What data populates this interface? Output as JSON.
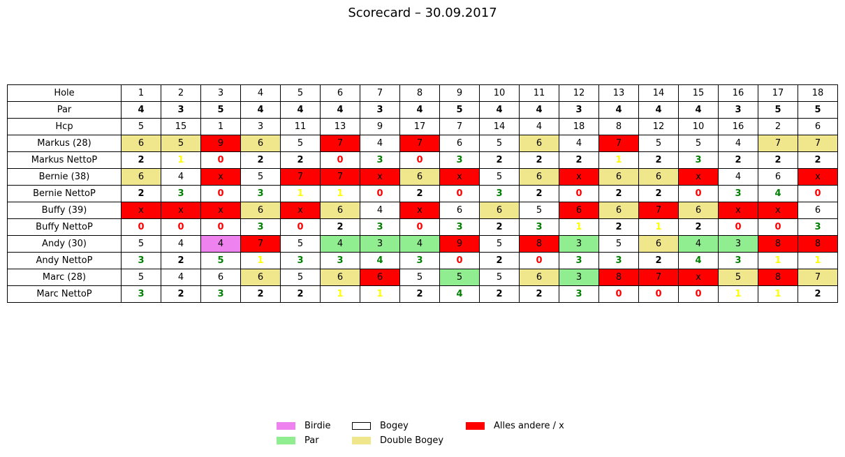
{
  "chart_data": {
    "type": "table",
    "title": "Scorecard – 30.09.2017",
    "colors": {
      "birdie": "#ee82ee",
      "par": "#90ee90",
      "bogey": "#ffffff",
      "double_bogey": "#f0e68c",
      "other": "#ff0000",
      "netto_green": "#008000",
      "netto_yellow": "#ffff00",
      "netto_red": "#ff0000",
      "netto_black": "#000000"
    },
    "legend": [
      {
        "label": "Birdie",
        "color": "#ee82ee"
      },
      {
        "label": "Par",
        "color": "#90ee90"
      },
      {
        "label": "Bogey",
        "color": "#ffffff"
      },
      {
        "label": "Double Bogey",
        "color": "#f0e68c"
      },
      {
        "label": "Alles andere / x",
        "color": "#ff0000"
      }
    ],
    "rows": [
      {
        "label": "Hole",
        "bold": false,
        "values": [
          "1",
          "2",
          "3",
          "4",
          "5",
          "6",
          "7",
          "8",
          "9",
          "10",
          "11",
          "12",
          "13",
          "14",
          "15",
          "16",
          "17",
          "18"
        ],
        "fills": [
          "none",
          "none",
          "none",
          "none",
          "none",
          "none",
          "none",
          "none",
          "none",
          "none",
          "none",
          "none",
          "none",
          "none",
          "none",
          "none",
          "none",
          "none"
        ],
        "text_colors": [
          "black",
          "black",
          "black",
          "black",
          "black",
          "black",
          "black",
          "black",
          "black",
          "black",
          "black",
          "black",
          "black",
          "black",
          "black",
          "black",
          "black",
          "black"
        ]
      },
      {
        "label": "Par",
        "bold": true,
        "values": [
          "4",
          "3",
          "5",
          "4",
          "4",
          "4",
          "3",
          "4",
          "5",
          "4",
          "4",
          "3",
          "4",
          "4",
          "4",
          "3",
          "5",
          "5"
        ],
        "fills": [
          "none",
          "none",
          "none",
          "none",
          "none",
          "none",
          "none",
          "none",
          "none",
          "none",
          "none",
          "none",
          "none",
          "none",
          "none",
          "none",
          "none",
          "none"
        ],
        "text_colors": [
          "black",
          "black",
          "black",
          "black",
          "black",
          "black",
          "black",
          "black",
          "black",
          "black",
          "black",
          "black",
          "black",
          "black",
          "black",
          "black",
          "black",
          "black"
        ]
      },
      {
        "label": "Hcp",
        "bold": false,
        "values": [
          "5",
          "15",
          "1",
          "3",
          "11",
          "13",
          "9",
          "17",
          "7",
          "14",
          "4",
          "18",
          "8",
          "12",
          "10",
          "16",
          "2",
          "6"
        ],
        "fills": [
          "none",
          "none",
          "none",
          "none",
          "none",
          "none",
          "none",
          "none",
          "none",
          "none",
          "none",
          "none",
          "none",
          "none",
          "none",
          "none",
          "none",
          "none"
        ],
        "text_colors": [
          "black",
          "black",
          "black",
          "black",
          "black",
          "black",
          "black",
          "black",
          "black",
          "black",
          "black",
          "black",
          "black",
          "black",
          "black",
          "black",
          "black",
          "black"
        ]
      },
      {
        "label": "Markus (28)",
        "bold": false,
        "values": [
          "6",
          "5",
          "9",
          "6",
          "5",
          "7",
          "4",
          "7",
          "6",
          "5",
          "6",
          "4",
          "7",
          "5",
          "5",
          "4",
          "7",
          "7"
        ],
        "fills": [
          "double_bogey",
          "double_bogey",
          "other",
          "double_bogey",
          "bogey",
          "other",
          "bogey",
          "other",
          "bogey",
          "bogey",
          "double_bogey",
          "bogey",
          "other",
          "bogey",
          "bogey",
          "bogey",
          "double_bogey",
          "double_bogey"
        ],
        "text_colors": [
          "black",
          "black",
          "black",
          "black",
          "black",
          "black",
          "black",
          "black",
          "black",
          "black",
          "black",
          "black",
          "black",
          "black",
          "black",
          "black",
          "black",
          "black"
        ]
      },
      {
        "label": "Markus NettoP",
        "bold": true,
        "values": [
          "2",
          "1",
          "0",
          "2",
          "2",
          "0",
          "3",
          "0",
          "3",
          "2",
          "2",
          "2",
          "1",
          "2",
          "3",
          "2",
          "2",
          "2"
        ],
        "fills": [
          "none",
          "none",
          "none",
          "none",
          "none",
          "none",
          "none",
          "none",
          "none",
          "none",
          "none",
          "none",
          "none",
          "none",
          "none",
          "none",
          "none",
          "none"
        ],
        "text_colors": [
          "netto_black",
          "netto_yellow",
          "netto_red",
          "netto_black",
          "netto_black",
          "netto_red",
          "netto_green",
          "netto_red",
          "netto_green",
          "netto_black",
          "netto_black",
          "netto_black",
          "netto_yellow",
          "netto_black",
          "netto_green",
          "netto_black",
          "netto_black",
          "netto_black"
        ]
      },
      {
        "label": "Bernie (38)",
        "bold": false,
        "values": [
          "6",
          "4",
          "x",
          "5",
          "7",
          "7",
          "x",
          "6",
          "x",
          "5",
          "6",
          "x",
          "6",
          "6",
          "x",
          "4",
          "6",
          "x"
        ],
        "fills": [
          "double_bogey",
          "bogey",
          "other",
          "bogey",
          "other",
          "other",
          "other",
          "double_bogey",
          "other",
          "bogey",
          "double_bogey",
          "other",
          "double_bogey",
          "double_bogey",
          "other",
          "bogey",
          "bogey",
          "other"
        ],
        "text_colors": [
          "black",
          "black",
          "black",
          "black",
          "black",
          "black",
          "black",
          "black",
          "black",
          "black",
          "black",
          "black",
          "black",
          "black",
          "black",
          "black",
          "black",
          "black"
        ]
      },
      {
        "label": "Bernie NettoP",
        "bold": true,
        "values": [
          "2",
          "3",
          "0",
          "3",
          "1",
          "1",
          "0",
          "2",
          "0",
          "3",
          "2",
          "0",
          "2",
          "2",
          "0",
          "3",
          "4",
          "0"
        ],
        "fills": [
          "none",
          "none",
          "none",
          "none",
          "none",
          "none",
          "none",
          "none",
          "none",
          "none",
          "none",
          "none",
          "none",
          "none",
          "none",
          "none",
          "none",
          "none"
        ],
        "text_colors": [
          "netto_black",
          "netto_green",
          "netto_red",
          "netto_green",
          "netto_yellow",
          "netto_yellow",
          "netto_red",
          "netto_black",
          "netto_red",
          "netto_green",
          "netto_black",
          "netto_red",
          "netto_black",
          "netto_black",
          "netto_red",
          "netto_green",
          "netto_green",
          "netto_red"
        ]
      },
      {
        "label": "Buffy (39)",
        "bold": false,
        "values": [
          "x",
          "x",
          "x",
          "6",
          "x",
          "6",
          "4",
          "x",
          "6",
          "6",
          "5",
          "6",
          "6",
          "7",
          "6",
          "x",
          "x",
          "6"
        ],
        "fills": [
          "other",
          "other",
          "other",
          "double_bogey",
          "other",
          "double_bogey",
          "bogey",
          "other",
          "bogey",
          "double_bogey",
          "bogey",
          "other",
          "double_bogey",
          "other",
          "double_bogey",
          "other",
          "other",
          "bogey"
        ],
        "text_colors": [
          "black",
          "black",
          "black",
          "black",
          "black",
          "black",
          "black",
          "black",
          "black",
          "black",
          "black",
          "black",
          "black",
          "black",
          "black",
          "black",
          "black",
          "black"
        ]
      },
      {
        "label": "Buffy NettoP",
        "bold": true,
        "values": [
          "0",
          "0",
          "0",
          "3",
          "0",
          "2",
          "3",
          "0",
          "3",
          "2",
          "3",
          "1",
          "2",
          "1",
          "2",
          "0",
          "0",
          "3"
        ],
        "fills": [
          "none",
          "none",
          "none",
          "none",
          "none",
          "none",
          "none",
          "none",
          "none",
          "none",
          "none",
          "none",
          "none",
          "none",
          "none",
          "none",
          "none",
          "none"
        ],
        "text_colors": [
          "netto_red",
          "netto_red",
          "netto_red",
          "netto_green",
          "netto_red",
          "netto_black",
          "netto_green",
          "netto_red",
          "netto_green",
          "netto_black",
          "netto_green",
          "netto_yellow",
          "netto_black",
          "netto_yellow",
          "netto_black",
          "netto_red",
          "netto_red",
          "netto_green"
        ]
      },
      {
        "label": "Andy (30)",
        "bold": false,
        "values": [
          "5",
          "4",
          "4",
          "7",
          "5",
          "4",
          "3",
          "4",
          "9",
          "5",
          "8",
          "3",
          "5",
          "6",
          "4",
          "3",
          "8",
          "8"
        ],
        "fills": [
          "bogey",
          "bogey",
          "birdie",
          "other",
          "bogey",
          "par",
          "par",
          "par",
          "other",
          "bogey",
          "other",
          "par",
          "bogey",
          "double_bogey",
          "par",
          "par",
          "other",
          "other"
        ],
        "text_colors": [
          "black",
          "black",
          "black",
          "black",
          "black",
          "black",
          "black",
          "black",
          "black",
          "black",
          "black",
          "black",
          "black",
          "black",
          "black",
          "black",
          "black",
          "black"
        ]
      },
      {
        "label": "Andy NettoP",
        "bold": true,
        "values": [
          "3",
          "2",
          "5",
          "1",
          "3",
          "3",
          "4",
          "3",
          "0",
          "2",
          "0",
          "3",
          "3",
          "2",
          "4",
          "3",
          "1",
          "1"
        ],
        "fills": [
          "none",
          "none",
          "none",
          "none",
          "none",
          "none",
          "none",
          "none",
          "none",
          "none",
          "none",
          "none",
          "none",
          "none",
          "none",
          "none",
          "none",
          "none"
        ],
        "text_colors": [
          "netto_green",
          "netto_black",
          "netto_green",
          "netto_yellow",
          "netto_green",
          "netto_green",
          "netto_green",
          "netto_green",
          "netto_red",
          "netto_black",
          "netto_red",
          "netto_green",
          "netto_green",
          "netto_black",
          "netto_green",
          "netto_green",
          "netto_yellow",
          "netto_yellow"
        ]
      },
      {
        "label": "Marc (28)",
        "bold": false,
        "values": [
          "5",
          "4",
          "6",
          "6",
          "5",
          "6",
          "6",
          "5",
          "5",
          "5",
          "6",
          "3",
          "8",
          "7",
          "x",
          "5",
          "8",
          "7"
        ],
        "fills": [
          "bogey",
          "bogey",
          "bogey",
          "double_bogey",
          "bogey",
          "double_bogey",
          "other",
          "bogey",
          "par",
          "bogey",
          "double_bogey",
          "par",
          "other",
          "other",
          "other",
          "double_bogey",
          "other",
          "double_bogey"
        ],
        "text_colors": [
          "black",
          "black",
          "black",
          "black",
          "black",
          "black",
          "black",
          "black",
          "black",
          "black",
          "black",
          "black",
          "black",
          "black",
          "black",
          "black",
          "black",
          "black"
        ]
      },
      {
        "label": "Marc NettoP",
        "bold": true,
        "values": [
          "3",
          "2",
          "3",
          "2",
          "2",
          "1",
          "1",
          "2",
          "4",
          "2",
          "2",
          "3",
          "0",
          "0",
          "0",
          "1",
          "1",
          "2"
        ],
        "fills": [
          "none",
          "none",
          "none",
          "none",
          "none",
          "none",
          "none",
          "none",
          "none",
          "none",
          "none",
          "none",
          "none",
          "none",
          "none",
          "none",
          "none",
          "none"
        ],
        "text_colors": [
          "netto_green",
          "netto_black",
          "netto_green",
          "netto_black",
          "netto_black",
          "netto_yellow",
          "netto_yellow",
          "netto_black",
          "netto_green",
          "netto_black",
          "netto_black",
          "netto_green",
          "netto_red",
          "netto_red",
          "netto_red",
          "netto_yellow",
          "netto_yellow",
          "netto_black"
        ]
      }
    ]
  }
}
